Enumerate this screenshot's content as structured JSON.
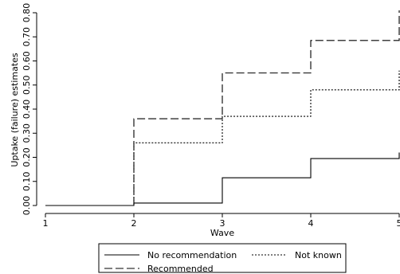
{
  "chart_data": {
    "type": "line",
    "step": true,
    "xlabel": "Wave",
    "ylabel": "Uptake (failure) estimates",
    "xlim": [
      1,
      5
    ],
    "ylim": [
      0,
      0.8
    ],
    "x_ticks": [
      1,
      2,
      3,
      4,
      5
    ],
    "x_tick_labels": [
      "1",
      "2",
      "3",
      "4",
      "5"
    ],
    "y_ticks": [
      0,
      0.1,
      0.2,
      0.3,
      0.4,
      0.5,
      0.6,
      0.7,
      0.8
    ],
    "y_tick_labels": [
      "0.00",
      "0.10",
      "0.20",
      "0.30",
      "0.40",
      "0.50",
      "0.60",
      "0.70",
      "0.80"
    ],
    "grid": false,
    "legend_position": "bottom",
    "series": [
      {
        "name": "No recommendation",
        "style": "solid",
        "color": "#000000",
        "x": [
          1,
          2,
          3,
          4,
          5
        ],
        "values": [
          0,
          0.01,
          0.115,
          0.195,
          0.22
        ]
      },
      {
        "name": "Not known",
        "style": "dotted",
        "color": "#000000",
        "x": [
          1,
          2,
          3,
          4,
          5
        ],
        "values": [
          0,
          0.26,
          0.37,
          0.48,
          0.56
        ]
      },
      {
        "name": "Recommended",
        "style": "dashed",
        "color": "#000000",
        "x": [
          1,
          2,
          3,
          4,
          5
        ],
        "values": [
          0,
          0.36,
          0.55,
          0.685,
          0.81
        ]
      }
    ]
  }
}
